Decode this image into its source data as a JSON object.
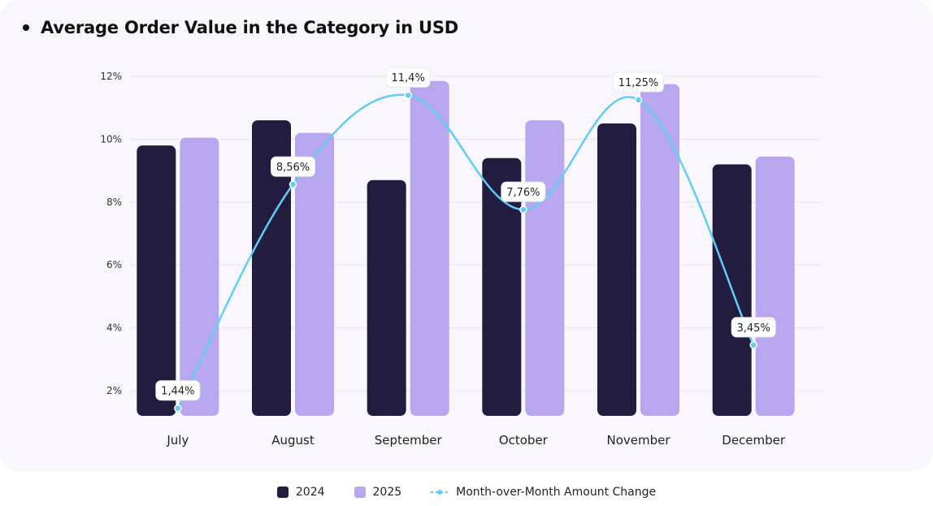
{
  "title": "Average Order Value in the Category in USD",
  "colors": {
    "series_2024": "#221c3e",
    "series_2025": "#b8a7ee",
    "line": "#5fcdf7",
    "grid": "#e8e2ef",
    "card": "#faf6fd"
  },
  "chart_data": {
    "type": "bar",
    "categories": [
      "July",
      "August",
      "September",
      "October",
      "November",
      "December"
    ],
    "series": [
      {
        "name": "2024",
        "values": [
          9.8,
          10.6,
          8.7,
          9.4,
          10.5,
          9.2
        ]
      },
      {
        "name": "2025",
        "values": [
          10.05,
          10.2,
          11.85,
          10.6,
          11.75,
          9.45
        ]
      }
    ],
    "line_series": {
      "name": "Month-over-Month Amount Change",
      "values": [
        1.44,
        8.56,
        11.4,
        7.76,
        11.25,
        3.45
      ],
      "labels": [
        "1,44%",
        "8,56%",
        "11,4%",
        "7,76%",
        "11,25%",
        "3,45%"
      ]
    },
    "yticks": [
      "2%",
      "4%",
      "6%",
      "8%",
      "10%",
      "12%"
    ],
    "ytick_values": [
      2,
      4,
      6,
      8,
      10,
      12
    ],
    "ylim": [
      1.2,
      12
    ],
    "grid": true,
    "legend_position": "bottom-center"
  },
  "legend": {
    "label_2024": "2024",
    "label_2025": "2025",
    "label_line": "Month-over-Month Amount Change"
  }
}
